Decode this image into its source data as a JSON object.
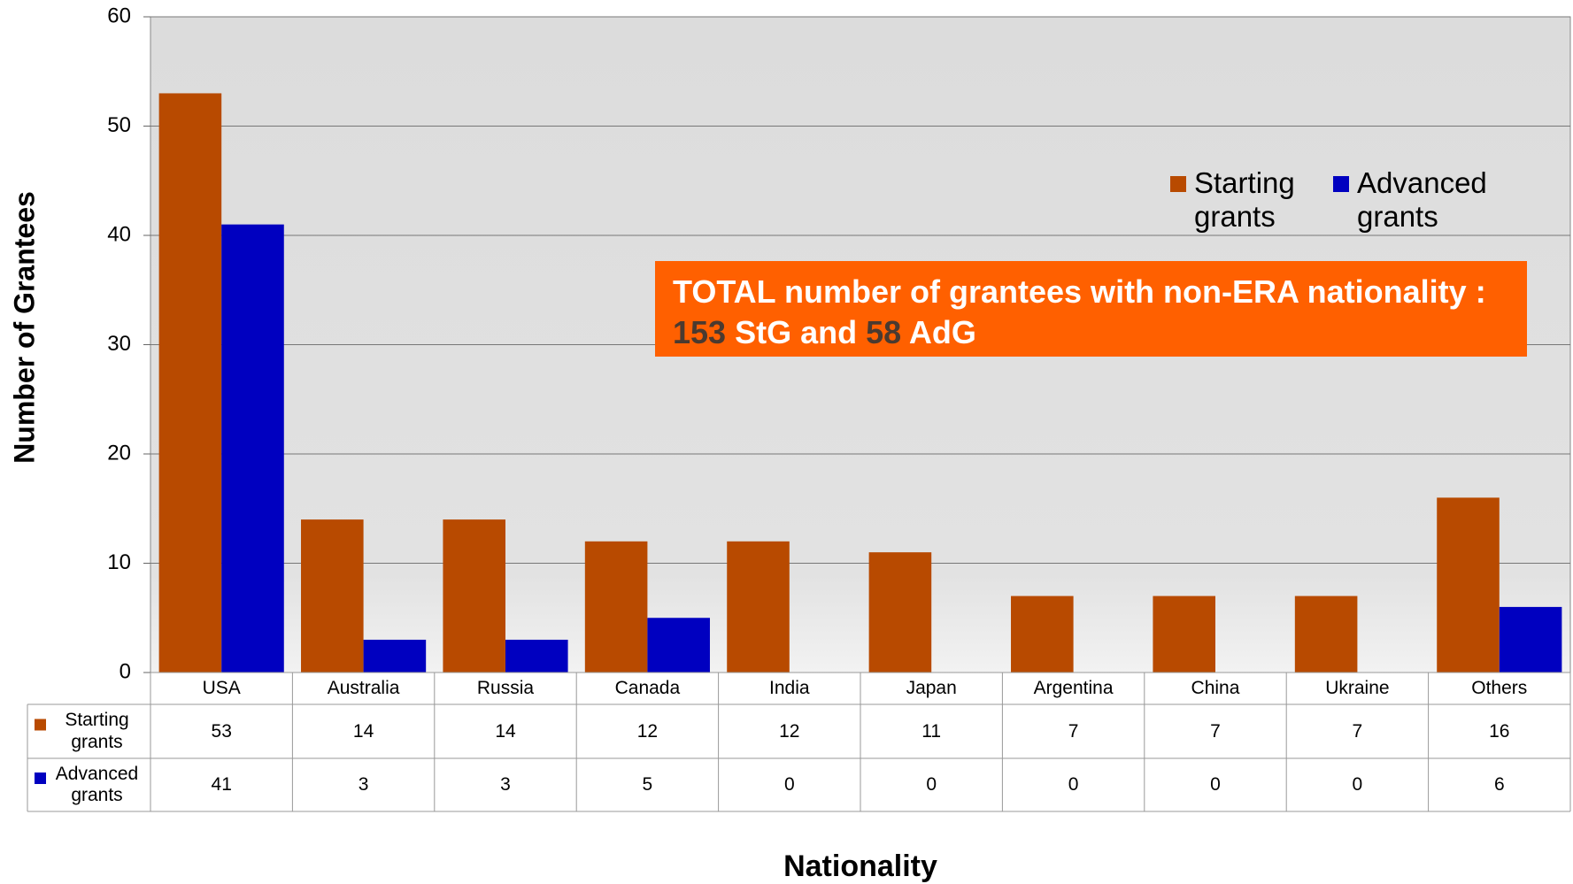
{
  "chart_data": {
    "type": "bar",
    "y_label": "Number of Grantees",
    "x_label": "Nationality",
    "categories": [
      "USA",
      "Australia",
      "Russia",
      "Canada",
      "India",
      "Japan",
      "Argentina",
      "China",
      "Ukraine",
      "Others"
    ],
    "series": [
      {
        "name": "Starting grants",
        "color": "#b84a00",
        "values": [
          53,
          14,
          14,
          12,
          12,
          11,
          7,
          7,
          7,
          16
        ]
      },
      {
        "name": "Advanced grants",
        "color": "#0000c0",
        "values": [
          41,
          3,
          3,
          5,
          0,
          0,
          0,
          0,
          0,
          6
        ]
      }
    ],
    "ylim": [
      0,
      60
    ],
    "yticks": [
      0,
      10,
      20,
      30,
      40,
      50,
      60
    ],
    "grid": true,
    "legend": "upper right",
    "data_table": true,
    "annotation": {
      "line1": "TOTAL number of grantees with non-ERA nationality :",
      "stg_total": "153",
      "stg_text": "StG and",
      "adg_total": "58",
      "adg_text": "AdG"
    }
  }
}
